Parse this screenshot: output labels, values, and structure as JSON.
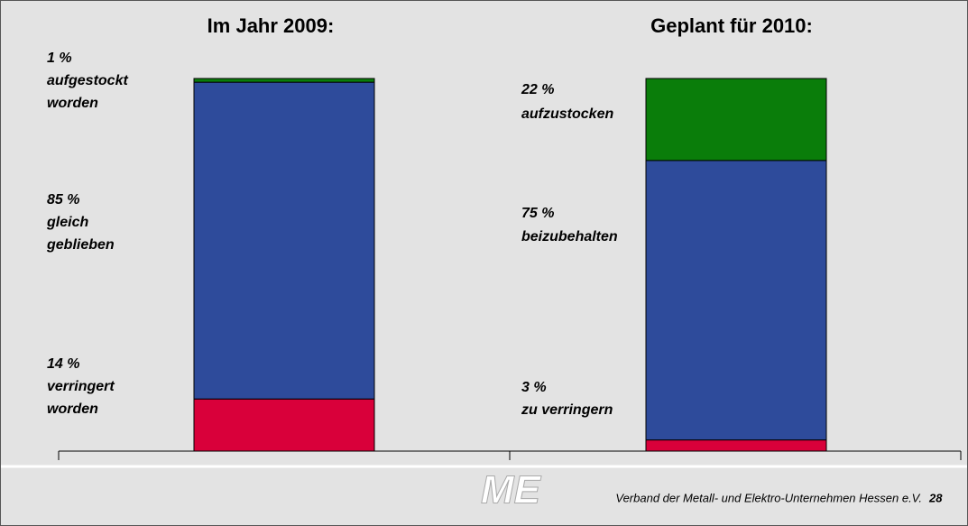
{
  "chart_data": {
    "type": "stacked_bar",
    "categories": [
      "Im Jahr 2009:",
      "Geplant für 2010:"
    ],
    "ylim": [
      0,
      100
    ],
    "series": [
      {
        "color": "#d9003a",
        "values": [
          14,
          3
        ],
        "value_labels": [
          "14 %",
          "3 %"
        ],
        "labels": [
          [
            "verringert",
            "worden"
          ],
          [
            "zu verringern"
          ]
        ]
      },
      {
        "color": "#2e4b9b",
        "values": [
          85,
          75
        ],
        "value_labels": [
          "85 %",
          "75 %"
        ],
        "labels": [
          [
            "gleich",
            "geblieben"
          ],
          [
            "beizubehalten"
          ]
        ]
      },
      {
        "color": "#0a7d0a",
        "values": [
          1,
          22
        ],
        "value_labels": [
          "1 %",
          "22 %"
        ],
        "labels": [
          [
            "aufgestockt",
            "worden"
          ],
          [
            "aufzustocken"
          ]
        ]
      }
    ]
  },
  "footer": {
    "logo": "ME",
    "text": "Verband der Metall- und Elektro-Unternehmen Hessen e.V.",
    "page": "28"
  }
}
